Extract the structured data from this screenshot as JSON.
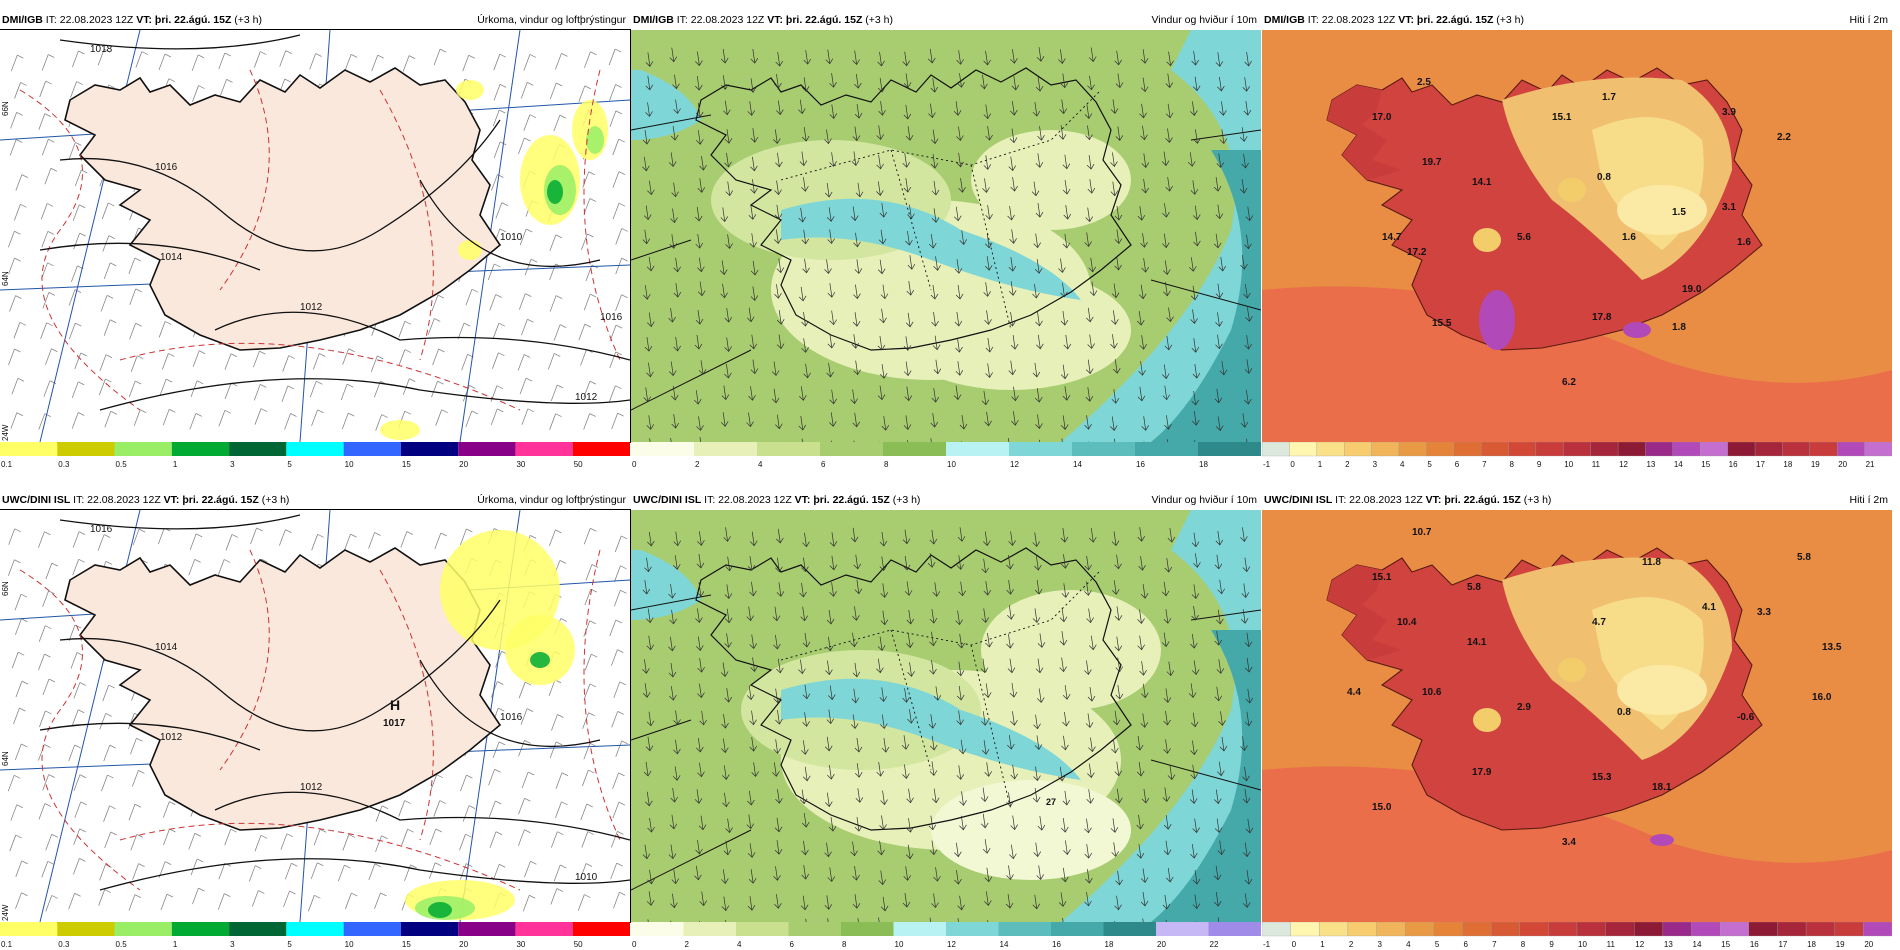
{
  "rows": [
    {
      "model": "DMI/IGB",
      "it": "IT: 22.08.2023 12Z",
      "vt": "VT: þri. 22.ágú. 15Z",
      "lead": "(+3 h)",
      "panels": [
        {
          "kind": "precip",
          "title": "Úrkoma, vindur og loftþrýstingur",
          "isobars": [
            "1018",
            "1016",
            "1014",
            "1012",
            "1012",
            "1010",
            "1016"
          ],
          "highs": []
        },
        {
          "kind": "wind",
          "title": "Vindur og hviður í 10m"
        },
        {
          "kind": "temp",
          "title": "Hiti í 2m",
          "values": [
            "2.5",
            "17.0",
            "15.1",
            "1.7",
            "3.9",
            "2.2",
            "19.7",
            "14.1",
            "0.8",
            "1.5",
            "3.1",
            "14.7",
            "5.6",
            "1.6",
            "1.6",
            "17.2",
            "19.0",
            "15.5",
            "17.8",
            "1.8",
            "6.2"
          ]
        }
      ]
    },
    {
      "model": "UWC/DINI ISL",
      "it": "IT: 22.08.2023 12Z",
      "vt": "VT: þri. 22.ágú. 15Z",
      "lead": "(+3 h)",
      "panels": [
        {
          "kind": "precip",
          "title": "Úrkoma, vindur og loftþrýstingur",
          "isobars": [
            "1016",
            "1014",
            "1012",
            "1012",
            "1010",
            "1016"
          ],
          "highs": [
            {
              "label": "H",
              "value": "1017"
            }
          ]
        },
        {
          "kind": "wind",
          "title": "Vindur og hviður í 10m",
          "gust_label": "27"
        },
        {
          "kind": "temp",
          "title": "Hiti í 2m",
          "values": [
            "10.7",
            "5.8",
            "15.1",
            "11.8",
            "5.8",
            "4.7",
            "4.1",
            "3.3",
            "10.4",
            "14.1",
            "13.5",
            "4.4",
            "10.6",
            "2.9",
            "0.8",
            "-0.6",
            "16.0",
            "17.9",
            "15.3",
            "18.1",
            "15.0",
            "3.4"
          ]
        }
      ]
    }
  ],
  "precip_scale": {
    "ticks": [
      "0.1",
      "0.3",
      "0.5",
      "1",
      "3",
      "5",
      "10",
      "15",
      "20",
      "30",
      "50"
    ],
    "colors": [
      "#ffff66",
      "#cccc00",
      "#99ee66",
      "#00aa33",
      "#006633",
      "#00ffff",
      "#3366ff",
      "#000080",
      "#880088",
      "#ff3399",
      "#ff0000"
    ]
  },
  "wind_scale_top": {
    "ticks": [
      "0",
      "2",
      "4",
      "6",
      "8",
      "10",
      "12",
      "14",
      "16",
      "18"
    ]
  },
  "wind_scale_bottom": {
    "ticks": [
      "0",
      "2",
      "4",
      "6",
      "8",
      "10",
      "12",
      "14",
      "16",
      "18",
      "20",
      "22"
    ]
  },
  "temp_scale_top": {
    "ticks": [
      "-1",
      "0",
      "1",
      "2",
      "3",
      "4",
      "5",
      "6",
      "7",
      "8",
      "9",
      "10",
      "11",
      "12",
      "13",
      "14",
      "15",
      "16",
      "17",
      "18",
      "19",
      "20",
      "21"
    ]
  },
  "temp_scale_bottom": {
    "ticks": [
      "-1",
      "0",
      "1",
      "2",
      "3",
      "4",
      "5",
      "6",
      "7",
      "8",
      "9",
      "10",
      "11",
      "12",
      "13",
      "14",
      "15",
      "16",
      "17",
      "18",
      "19",
      "20"
    ]
  },
  "lat_labels": [
    "66N",
    "64N",
    "24W"
  ]
}
